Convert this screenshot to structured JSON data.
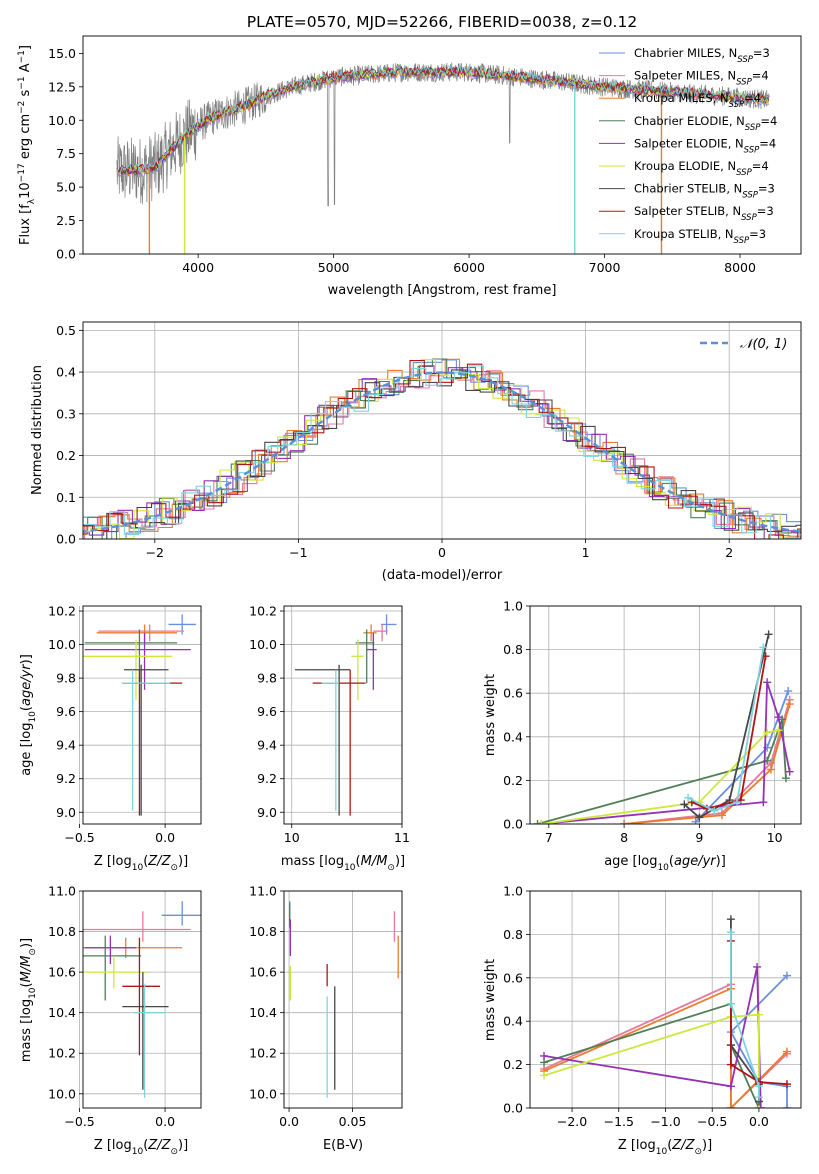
{
  "figure": {
    "title": "PLATE=0570, MJD=52266, FIBERID=0038, z=0.12"
  },
  "colors": {
    "Chabrier MILES": "#6a8fe0",
    "Salpeter MILES": "#e8789c",
    "Kroupa MILES": "#ea7c2c",
    "Chabrier ELODIE": "#4f7f56",
    "Salpeter ELODIE": "#9332b4",
    "Kroupa ELODIE": "#cde83c",
    "Chabrier STELIB": "#474747",
    "Salpeter STELIB": "#b01515",
    "Kroupa STELIB": "#7dd4dc",
    "data": "#7f7f7f",
    "gauss": "#5b8fd6"
  },
  "legend_spectrum": [
    {
      "label": "Chabrier MILES, N",
      "sub": "SSP",
      "tail": "=3",
      "color": "#6a8fe0"
    },
    {
      "label": "Salpeter MILES, N",
      "sub": "SSP",
      "tail": "=4",
      "color": "#e8789c"
    },
    {
      "label": "Kroupa MILES, N",
      "sub": "SSP",
      "tail": "=4",
      "color": "#ea7c2c"
    },
    {
      "label": "Chabrier ELODIE, N",
      "sub": "SSP",
      "tail": "=4",
      "color": "#4f7f56"
    },
    {
      "label": "Salpeter ELODIE, N",
      "sub": "SSP",
      "tail": "=4",
      "color": "#9332b4"
    },
    {
      "label": "Kroupa ELODIE, N",
      "sub": "SSP",
      "tail": "=4",
      "color": "#cde83c"
    },
    {
      "label": "Chabrier STELIB, N",
      "sub": "SSP",
      "tail": "=3",
      "color": "#474747"
    },
    {
      "label": "Salpeter STELIB, N",
      "sub": "SSP",
      "tail": "=3",
      "color": "#b01515"
    },
    {
      "label": "Kroupa STELIB, N",
      "sub": "SSP",
      "tail": "=3",
      "color": "#7dd4dc"
    }
  ],
  "legend_hist": {
    "label": "𝒩(0, 1)"
  },
  "chart_data": [
    {
      "id": "spectrum",
      "type": "line",
      "title": "PLATE=0570, MJD=52266, FIBERID=0038, z=0.12",
      "xlabel": "wavelength [Angstrom, rest frame]",
      "ylabel": "Flux [fλ10⁻¹⁷ erg cm⁻² s⁻¹ A⁻¹]",
      "xlim": [
        3150,
        8450
      ],
      "ylim": [
        0,
        16.3
      ],
      "xticks": [
        4000,
        5000,
        6000,
        7000,
        8000
      ],
      "yticks": [
        0.0,
        2.5,
        5.0,
        7.5,
        10.0,
        12.5,
        15.0
      ],
      "continuum": {
        "x": [
          3400,
          3600,
          3700,
          3800,
          3900,
          4000,
          4100,
          4200,
          4300,
          4400,
          4500,
          4700,
          5000,
          5500,
          6000,
          6500,
          7000,
          7500,
          8000,
          8220
        ],
        "y": [
          6.2,
          6.3,
          6.6,
          7.8,
          8.8,
          9.6,
          10.2,
          10.6,
          10.9,
          11.3,
          11.8,
          12.5,
          13.2,
          13.6,
          13.6,
          13.1,
          12.5,
          12.1,
          11.7,
          11.5
        ]
      },
      "drops": [
        {
          "model": "Kroupa MILES",
          "x": 3640
        },
        {
          "model": "Kroupa ELODIE",
          "x": 3900
        },
        {
          "model": "Kroupa STELIB",
          "x": 6780
        },
        {
          "model": "Kroupa MILES",
          "x": 7420
        }
      ],
      "grid": false,
      "legend_position": "upper right"
    },
    {
      "id": "residuals",
      "type": "histogram",
      "xlabel": "(data-model)/error",
      "ylabel": "Normed distribution",
      "xlim": [
        -2.5,
        2.5
      ],
      "ylim": [
        0,
        0.52
      ],
      "xticks": [
        -2,
        -1,
        0,
        1,
        2
      ],
      "yticks": [
        0.0,
        0.1,
        0.2,
        0.3,
        0.4,
        0.5
      ],
      "bin_width": 0.1,
      "gaussian": {
        "mean": 0,
        "sigma": 1,
        "label": "𝒩(0, 1)"
      },
      "grid": true,
      "legend_position": "upper right"
    },
    {
      "id": "age_vs_Z",
      "type": "errorbar",
      "xlabel": "Z [log10(Z/Z⊙)]",
      "ylabel": "age [log10(age/yr)]",
      "xlim": [
        -0.48,
        0.21
      ],
      "ylim": [
        8.93,
        10.23
      ],
      "xticks": [
        -0.5,
        0.0
      ],
      "yticks": [
        9.0,
        9.2,
        9.4,
        9.6,
        9.8,
        10.0,
        10.2
      ],
      "points": [
        {
          "model": "Chabrier MILES",
          "x": 0.1,
          "y": 10.12,
          "xerr": [
            0.08,
            0.08
          ],
          "yerr": [
            0.06,
            0.06
          ]
        },
        {
          "model": "Salpeter MILES",
          "x": -0.09,
          "y": 10.08,
          "xerr": [
            0.3,
            0.2
          ],
          "yerr": [
            0.06,
            0.04
          ]
        },
        {
          "model": "Kroupa MILES",
          "x": -0.12,
          "y": 10.07,
          "xerr": [
            0.28,
            0.19
          ],
          "yerr": [
            0.05,
            0.05
          ]
        },
        {
          "model": "Chabrier ELODIE",
          "x": -0.15,
          "y": 10.01,
          "xerr": [
            0.32,
            0.22
          ],
          "yerr": [
            0.24,
            0.08
          ]
        },
        {
          "model": "Salpeter ELODIE",
          "x": -0.12,
          "y": 9.97,
          "xerr": [
            0.35,
            0.27
          ],
          "yerr": [
            0.24,
            0.1
          ]
        },
        {
          "model": "Kroupa ELODIE",
          "x": -0.17,
          "y": 9.93,
          "xerr": [
            0.33,
            0.21
          ],
          "yerr": [
            0.26,
            0.1
          ]
        },
        {
          "model": "Chabrier STELIB",
          "x": -0.14,
          "y": 9.85,
          "xerr": [
            0.1,
            0.16
          ],
          "yerr": [
            0.87,
            0.03
          ]
        },
        {
          "model": "Salpeter STELIB",
          "x": -0.15,
          "y": 9.77,
          "xerr": [
            0.1,
            0.25
          ],
          "yerr": [
            0.79,
            0.08
          ]
        },
        {
          "model": "Kroupa STELIB",
          "x": -0.19,
          "y": 9.77,
          "xerr": [
            0.06,
            0.22
          ],
          "yerr": [
            0.76,
            0.08
          ]
        }
      ],
      "grid": true
    },
    {
      "id": "age_vs_mass",
      "type": "errorbar",
      "xlabel": "mass [log10(M/M⊙)]",
      "ylabel": "",
      "xlim": [
        9.93,
        11.0
      ],
      "ylim": [
        8.93,
        10.23
      ],
      "xticks": [
        10,
        11
      ],
      "yticks": [
        9.0,
        9.2,
        9.4,
        9.6,
        9.8,
        10.0,
        10.2
      ],
      "points": [
        {
          "model": "Chabrier MILES",
          "x": 10.86,
          "y": 10.12,
          "xerr": [
            0.05,
            0.09
          ],
          "yerr": [
            0.06,
            0.06
          ]
        },
        {
          "model": "Salpeter MILES",
          "x": 10.82,
          "y": 10.08,
          "xerr": [
            0.08,
            0.05
          ],
          "yerr": [
            0.06,
            0.04
          ]
        },
        {
          "model": "Kroupa MILES",
          "x": 10.72,
          "y": 10.07,
          "xerr": [
            0.07,
            0.05
          ],
          "yerr": [
            0.05,
            0.05
          ]
        },
        {
          "model": "Chabrier ELODIE",
          "x": 10.68,
          "y": 10.01,
          "xerr": [
            0.1,
            0.07
          ],
          "yerr": [
            0.24,
            0.08
          ]
        },
        {
          "model": "Salpeter ELODIE",
          "x": 10.74,
          "y": 9.97,
          "xerr": [
            0.06,
            0.03
          ],
          "yerr": [
            0.24,
            0.1
          ]
        },
        {
          "model": "Kroupa ELODIE",
          "x": 10.6,
          "y": 9.93,
          "xerr": [
            0.06,
            0.05
          ],
          "yerr": [
            0.26,
            0.1
          ]
        },
        {
          "model": "Chabrier STELIB",
          "x": 10.43,
          "y": 9.85,
          "xerr": [
            0.4,
            0.1
          ],
          "yerr": [
            0.87,
            0.03
          ]
        },
        {
          "model": "Salpeter STELIB",
          "x": 10.53,
          "y": 9.77,
          "xerr": [
            0.34,
            0.14
          ],
          "yerr": [
            0.79,
            0.08
          ]
        },
        {
          "model": "Kroupa STELIB",
          "x": 10.4,
          "y": 9.77,
          "xerr": [
            0.13,
            0.03
          ],
          "yerr": [
            0.76,
            0.08
          ]
        }
      ],
      "grid": true
    },
    {
      "id": "weight_vs_age",
      "type": "line",
      "xlabel": "age [log10(age/yr)]",
      "ylabel": "mass weight",
      "xlim": [
        6.75,
        10.35
      ],
      "ylim": [
        0,
        1.0
      ],
      "xticks": [
        7,
        8,
        9,
        10
      ],
      "yticks": [
        0.0,
        0.2,
        0.4,
        0.6,
        0.8,
        1.0
      ],
      "series": [
        {
          "model": "Chabrier MILES",
          "x": [
            8.95,
            9.9,
            10.18
          ],
          "y": [
            0.01,
            0.35,
            0.61
          ]
        },
        {
          "model": "Salpeter MILES",
          "x": [
            8.0,
            9.3,
            9.95,
            10.2
          ],
          "y": [
            0.0,
            0.05,
            0.28,
            0.57
          ]
        },
        {
          "model": "Kroupa MILES",
          "x": [
            8.0,
            9.3,
            9.95,
            10.2
          ],
          "y": [
            0.0,
            0.04,
            0.25,
            0.55
          ]
        },
        {
          "model": "Chabrier ELODIE",
          "x": [
            6.85,
            9.9,
            10.1,
            10.15
          ],
          "y": [
            0.0,
            0.29,
            0.48,
            0.21
          ]
        },
        {
          "model": "Salpeter ELODIE",
          "x": [
            6.9,
            9.85,
            9.9,
            10.05,
            10.2
          ],
          "y": [
            0.0,
            0.1,
            0.65,
            0.49,
            0.24
          ]
        },
        {
          "model": "Kroupa ELODIE",
          "x": [
            6.9,
            9.0,
            9.9,
            10.05
          ],
          "y": [
            0.0,
            0.1,
            0.42,
            0.43
          ]
        },
        {
          "model": "Chabrier STELIB",
          "x": [
            8.8,
            9.0,
            9.4,
            9.92
          ],
          "y": [
            0.09,
            0.03,
            0.11,
            0.87
          ]
        },
        {
          "model": "Salpeter STELIB",
          "x": [
            8.9,
            9.1,
            9.55,
            9.88
          ],
          "y": [
            0.1,
            0.07,
            0.11,
            0.77
          ]
        },
        {
          "model": "Kroupa STELIB",
          "x": [
            8.85,
            9.2,
            9.5,
            9.85
          ],
          "y": [
            0.12,
            0.06,
            0.1,
            0.81
          ]
        }
      ],
      "grid": true
    },
    {
      "id": "mass_vs_Z",
      "type": "errorbar",
      "xlabel": "Z [log10(Z/Z⊙)]",
      "ylabel": "mass [log10(M/M⊙)]",
      "xlim": [
        -0.48,
        0.21
      ],
      "ylim": [
        9.93,
        11.0
      ],
      "xticks": [
        -0.5,
        0.0
      ],
      "yticks": [
        10.0,
        10.2,
        10.4,
        10.6,
        10.8,
        11.0
      ],
      "points": [
        {
          "model": "Chabrier MILES",
          "x": 0.1,
          "y": 10.88,
          "xerr": [
            0.12,
            0.11
          ],
          "yerr": [
            0.05,
            0.07
          ]
        },
        {
          "model": "Salpeter MILES",
          "x": -0.13,
          "y": 10.81,
          "xerr": [
            0.35,
            0.28
          ],
          "yerr": [
            0.06,
            0.09
          ]
        },
        {
          "model": "Kroupa MILES",
          "x": -0.23,
          "y": 10.72,
          "xerr": [
            0.25,
            0.33
          ],
          "yerr": [
            0.05,
            0.05
          ]
        },
        {
          "model": "Chabrier ELODIE",
          "x": -0.35,
          "y": 10.68,
          "xerr": [
            0.13,
            0.21
          ],
          "yerr": [
            0.22,
            0.1
          ]
        },
        {
          "model": "Salpeter ELODIE",
          "x": -0.32,
          "y": 10.72,
          "xerr": [
            0.15,
            0.15
          ],
          "yerr": [
            0.08,
            0.06
          ]
        },
        {
          "model": "Kroupa ELODIE",
          "x": -0.3,
          "y": 10.6,
          "xerr": [
            0.18,
            0.2
          ],
          "yerr": [
            0.08,
            0.08
          ]
        },
        {
          "model": "Chabrier STELIB",
          "x": -0.13,
          "y": 10.43,
          "xerr": [
            0.12,
            0.15
          ],
          "yerr": [
            0.41,
            0.17
          ]
        },
        {
          "model": "Salpeter STELIB",
          "x": -0.15,
          "y": 10.53,
          "xerr": [
            0.1,
            0.12
          ],
          "yerr": [
            0.34,
            0.24
          ]
        },
        {
          "model": "Kroupa STELIB",
          "x": -0.12,
          "y": 10.4,
          "xerr": [
            0.06,
            0.12
          ],
          "yerr": [
            0.42,
            0.14
          ]
        }
      ],
      "grid": true
    },
    {
      "id": "mass_vs_EBV",
      "type": "errorbar",
      "xlabel": "E(B-V)",
      "ylabel": "",
      "xlim": [
        -0.004,
        0.089
      ],
      "ylim": [
        9.93,
        11.0
      ],
      "xticks": [
        0.0,
        0.05
      ],
      "yticks": [
        10.0,
        10.2,
        10.4,
        10.6,
        10.8,
        11.0
      ],
      "points": [
        {
          "model": "Chabrier MILES",
          "x": 0.0005,
          "y": 10.88,
          "xerr": [
            0,
            0
          ],
          "yerr": [
            0.05,
            0.07
          ]
        },
        {
          "model": "Salpeter MILES",
          "x": 0.083,
          "y": 10.81,
          "xerr": [
            0,
            0
          ],
          "yerr": [
            0.06,
            0.09
          ]
        },
        {
          "model": "Kroupa MILES",
          "x": 0.086,
          "y": 10.68,
          "xerr": [
            0,
            0
          ],
          "yerr": [
            0.11,
            0.1
          ]
        },
        {
          "model": "Chabrier ELODIE",
          "x": 0.0005,
          "y": 10.86,
          "xerr": [
            0,
            0
          ],
          "yerr": [
            0.04,
            0.08
          ]
        },
        {
          "model": "Salpeter ELODIE",
          "x": 0.001,
          "y": 10.76,
          "xerr": [
            0,
            0
          ],
          "yerr": [
            0.08,
            0.1
          ]
        },
        {
          "model": "Kroupa ELODIE",
          "x": 0.001,
          "y": 10.55,
          "xerr": [
            0,
            0
          ],
          "yerr": [
            0.09,
            0.08
          ]
        },
        {
          "model": "Chabrier STELIB",
          "x": 0.036,
          "y": 10.43,
          "xerr": [
            0,
            0
          ],
          "yerr": [
            0.41,
            0.1
          ]
        },
        {
          "model": "Salpeter STELIB",
          "x": 0.03,
          "y": 10.58,
          "xerr": [
            0,
            0
          ],
          "yerr": [
            0.05,
            0.06
          ]
        },
        {
          "model": "Kroupa STELIB",
          "x": 0.03,
          "y": 10.4,
          "xerr": [
            0,
            0
          ],
          "yerr": [
            0.42,
            0.08
          ]
        }
      ],
      "grid": true
    },
    {
      "id": "weight_vs_Z",
      "type": "line",
      "xlabel": "Z [log10(Z/Z⊙)]",
      "ylabel": "mass weight",
      "xlim": [
        -2.45,
        0.45
      ],
      "ylim": [
        0,
        1.0
      ],
      "xticks": [
        -2.0,
        -1.5,
        -1.0,
        -0.5,
        0.0
      ],
      "yticks": [
        0.0,
        0.2,
        0.4,
        0.6,
        0.8,
        1.0
      ],
      "series": [
        {
          "model": "Chabrier MILES",
          "x": [
            0.3,
            -0.3,
            0.0,
            0.3,
            0.3
          ],
          "y": [
            0.61,
            0.35,
            0.12,
            0.1,
            0.0
          ]
        },
        {
          "model": "Salpeter MILES",
          "x": [
            -2.3,
            -0.3,
            -0.3,
            0.3
          ],
          "y": [
            0.18,
            0.57,
            0.0,
            0.25
          ]
        },
        {
          "model": "Kroupa MILES",
          "x": [
            -2.3,
            -0.3,
            -0.3,
            0.3
          ],
          "y": [
            0.17,
            0.55,
            0.0,
            0.26
          ]
        },
        {
          "model": "Chabrier ELODIE",
          "x": [
            -2.3,
            -0.3,
            -0.3,
            0.0
          ],
          "y": [
            0.21,
            0.48,
            0.29,
            0.0
          ]
        },
        {
          "model": "Salpeter ELODIE",
          "x": [
            -2.3,
            -0.3,
            -0.02,
            0.02
          ],
          "y": [
            0.24,
            0.1,
            0.65,
            0.0
          ]
        },
        {
          "model": "Kroupa ELODIE",
          "x": [
            -2.3,
            -0.3,
            0.0,
            0.0
          ],
          "y": [
            0.15,
            0.42,
            0.43,
            0.0
          ]
        },
        {
          "model": "Chabrier STELIB",
          "x": [
            -0.3,
            -0.3,
            0.0,
            0.0
          ],
          "y": [
            0.87,
            0.29,
            0.11,
            0.03
          ]
        },
        {
          "model": "Salpeter STELIB",
          "x": [
            -0.3,
            -0.3,
            0.0,
            0.3
          ],
          "y": [
            0.77,
            0.2,
            0.12,
            0.11
          ]
        },
        {
          "model": "Kroupa STELIB",
          "x": [
            -0.3,
            -0.3,
            0.0,
            0.0
          ],
          "y": [
            0.81,
            0.48,
            0.1,
            0.05
          ]
        }
      ],
      "grid": true
    }
  ]
}
